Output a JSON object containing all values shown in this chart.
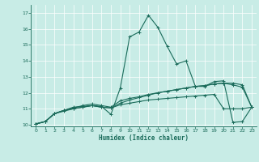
{
  "xlabel": "Humidex (Indice chaleur)",
  "bg_color": "#c8ece6",
  "line_color": "#1a6b5a",
  "xlim": [
    -0.5,
    23.5
  ],
  "ylim": [
    9.9,
    17.5
  ],
  "yticks": [
    10,
    11,
    12,
    13,
    14,
    15,
    16,
    17
  ],
  "xticks": [
    0,
    1,
    2,
    3,
    4,
    5,
    6,
    7,
    8,
    9,
    10,
    11,
    12,
    13,
    14,
    15,
    16,
    17,
    18,
    19,
    20,
    21,
    22,
    23
  ],
  "lines": [
    [
      10.05,
      10.2,
      10.7,
      10.9,
      11.1,
      11.15,
      11.2,
      11.15,
      10.65,
      12.3,
      15.5,
      15.8,
      16.85,
      16.1,
      14.9,
      13.8,
      14.0,
      12.4,
      12.4,
      12.7,
      12.75,
      10.15,
      10.2,
      11.1
    ],
    [
      10.05,
      10.2,
      10.7,
      10.9,
      11.05,
      11.2,
      11.3,
      11.2,
      11.1,
      11.5,
      11.65,
      11.75,
      11.9,
      12.0,
      12.1,
      12.2,
      12.3,
      12.4,
      12.45,
      12.55,
      12.6,
      12.5,
      12.35,
      11.1
    ],
    [
      10.05,
      10.2,
      10.7,
      10.9,
      11.0,
      11.1,
      11.2,
      11.1,
      11.05,
      11.25,
      11.35,
      11.45,
      11.55,
      11.6,
      11.65,
      11.7,
      11.75,
      11.8,
      11.85,
      11.9,
      11.0,
      11.0,
      11.0,
      11.1
    ],
    [
      10.05,
      10.2,
      10.7,
      10.85,
      11.0,
      11.1,
      11.2,
      11.1,
      11.05,
      11.35,
      11.55,
      11.7,
      11.85,
      12.0,
      12.1,
      12.2,
      12.3,
      12.4,
      12.45,
      12.55,
      12.6,
      12.6,
      12.5,
      11.1
    ]
  ]
}
